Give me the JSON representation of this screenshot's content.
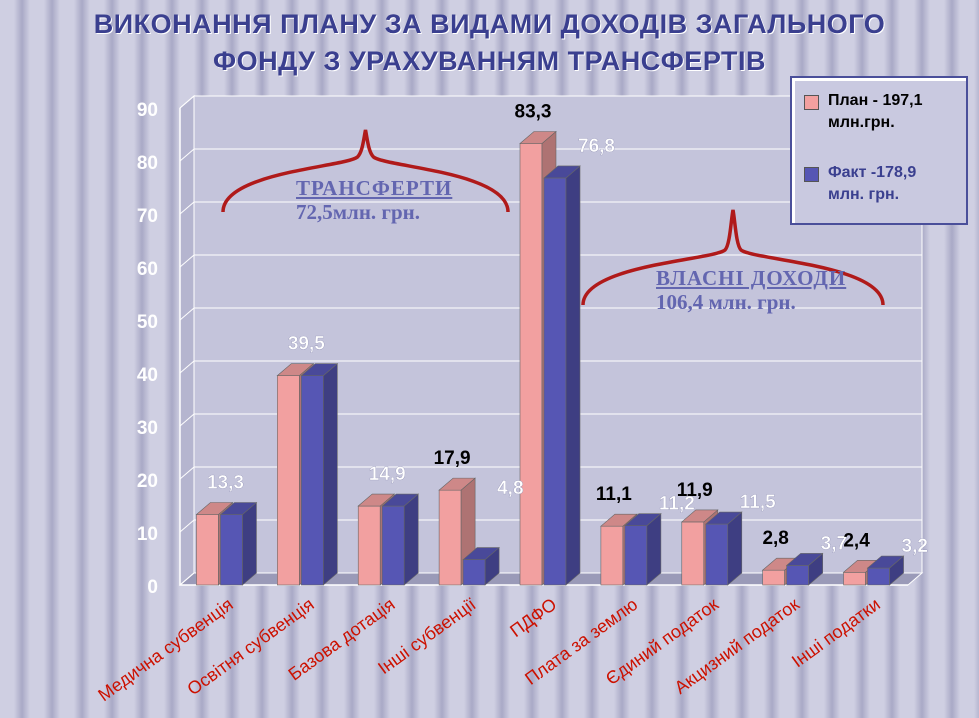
{
  "title_line1": "ВИКОНАННЯ ПЛАНУ ЗА ВИДАМИ ДОХОДІВ ЗАГАЛЬНОГО",
  "title_line2": "ФОНДУ  З УРАХУВАННЯМ ТРАНСФЕРТІВ",
  "legend": {
    "plan_line1": "План - 197,1",
    "plan_line2": "млн.грн.",
    "fact_line1": "Факт -178,9",
    "fact_line2": "млн. грн."
  },
  "annotations": {
    "transfers_title": "ТРАНСФЕРТИ",
    "transfers_value": "72,5млн. грн.",
    "own_title": "ВЛАСНІ ДОХОДИ",
    "own_value": "106,4 млн. грн."
  },
  "colors": {
    "plan": "#f2a0a0",
    "fact": "#5656b4",
    "axis_text": "#ffffff",
    "category_text": "#cc1100",
    "title": "#3a3f8f"
  },
  "chart_data": {
    "type": "bar",
    "title": "ВИКОНАННЯ ПЛАНУ ЗА ВИДАМИ ДОХОДІВ ЗАГАЛЬНОГО ФОНДУ  З УРАХУВАННЯМ ТРАНСФЕРТІВ",
    "categories": [
      "Медична субвенція",
      "Освітня субвенція",
      "Базова дотація",
      "Інші субвенції",
      "ПДФО",
      "Плата за землю",
      "Єдиний податок",
      "Акцизний податок",
      "Інші податки"
    ],
    "series": [
      {
        "name": "План - 197,1 млн.грн.",
        "values": [
          13.3,
          39.5,
          14.9,
          17.9,
          83.3,
          11.1,
          11.9,
          2.8,
          2.4
        ],
        "labels": [
          "",
          "",
          "",
          "17,9",
          "83,3",
          "11,1",
          "11,9",
          "2,8",
          "2,4"
        ]
      },
      {
        "name": "Факт -178,9 млн. грн.",
        "values": [
          13.3,
          39.5,
          14.9,
          4.8,
          76.8,
          11.2,
          11.5,
          3.7,
          3.2
        ],
        "labels": [
          "13,3",
          "39,5",
          "14,9",
          "4,8",
          "76,8",
          "11,2",
          "11,5",
          "3,7",
          "3,2"
        ]
      }
    ],
    "yticks": [
      "0",
      "10",
      "20",
      "30",
      "40",
      "50",
      "60",
      "70",
      "80",
      "90"
    ],
    "ylim": [
      0,
      90
    ],
    "grid": true,
    "legend_position": "top-right"
  }
}
